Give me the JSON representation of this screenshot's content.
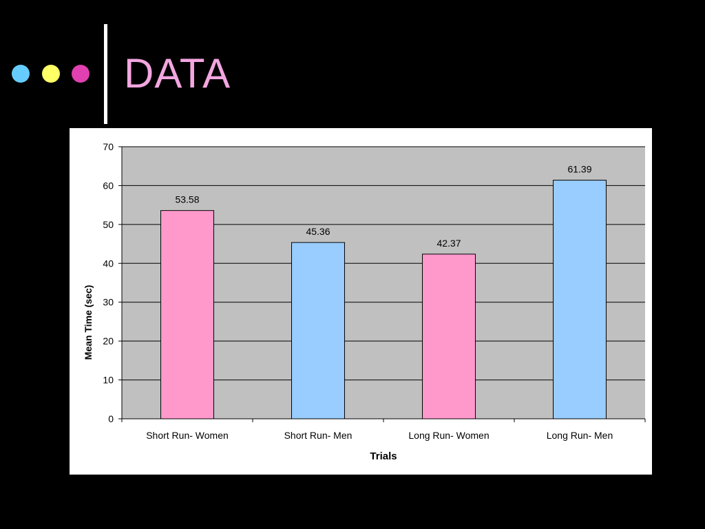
{
  "slide": {
    "title": "DATA",
    "title_color": "#f3a6e0",
    "bullet_dots": [
      {
        "name": "cyan-dot",
        "color": "#66ccff"
      },
      {
        "name": "yellow-dot",
        "color": "#ffff66"
      },
      {
        "name": "magenta-dot",
        "color": "#e040b0"
      }
    ]
  },
  "chart_data": {
    "type": "bar",
    "title": "",
    "xlabel": "Trials",
    "ylabel": "Mean Time (sec)",
    "ylim": [
      0,
      70
    ],
    "yticks": [
      0,
      10,
      20,
      30,
      40,
      50,
      60,
      70
    ],
    "categories": [
      "Short Run- Women",
      "Short Run- Men",
      "Long Run- Women",
      "Long Run- Men"
    ],
    "values": [
      53.58,
      45.36,
      42.37,
      61.39
    ],
    "data_labels": [
      "53.58",
      "45.36",
      "42.37",
      "61.39"
    ],
    "bar_colors": [
      "#ff99cc",
      "#99ccff",
      "#ff99cc",
      "#99ccff"
    ],
    "plot_background": "#c0c0c0",
    "grid": true,
    "legend": "none"
  }
}
